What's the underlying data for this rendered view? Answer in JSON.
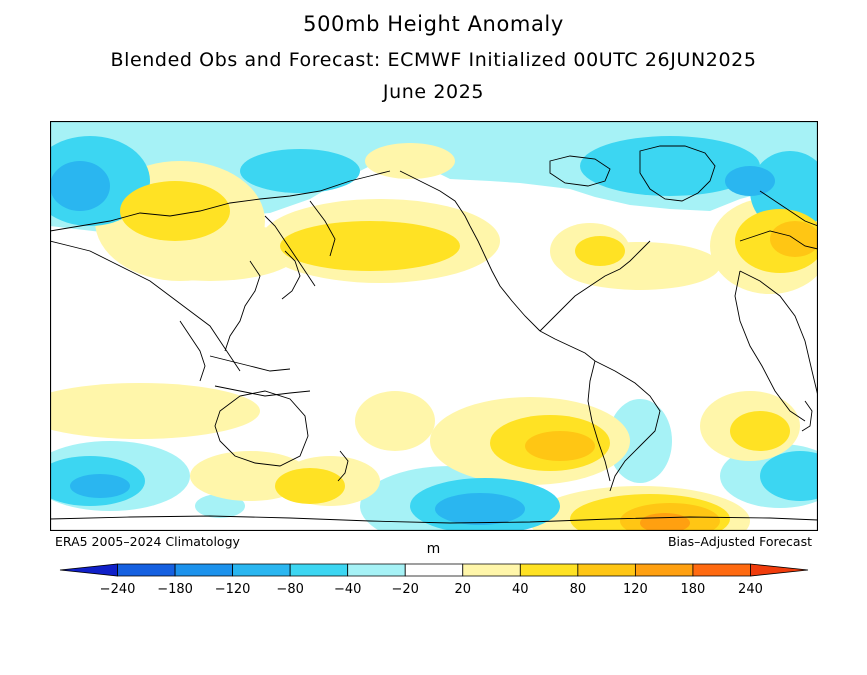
{
  "title": "500mb Height Anomaly",
  "subtitle": "Blended Obs and Forecast: ECMWF Initialized 00UTC 26JUN2025",
  "period": "June 2025",
  "footer_left": "ERA5 2005–2024 Climatology",
  "footer_right": "Bias–Adjusted Forecast",
  "colorbar": {
    "unit": "m",
    "ticks": [
      "−240",
      "−180",
      "−120",
      "−80",
      "−40",
      "−20",
      "20",
      "40",
      "80",
      "120",
      "180",
      "240"
    ],
    "colors": [
      "#1020c8",
      "#1560e0",
      "#1c92ec",
      "#2ab6f0",
      "#3cd6f2",
      "#a6f2f6",
      "#ffffff",
      "#fff6aa",
      "#ffe224",
      "#ffc614",
      "#ffa010",
      "#ff6a10",
      "#f03c0c"
    ]
  },
  "anomaly_colors": {
    "neg20": "#a6f2f6",
    "neg40": "#3cd6f2",
    "neg80": "#2ab6f0",
    "neg120": "#1c92ec",
    "pos20": "#fff6aa",
    "pos40": "#ffe224",
    "pos80": "#ffc614",
    "pos120": "#ffa010"
  }
}
